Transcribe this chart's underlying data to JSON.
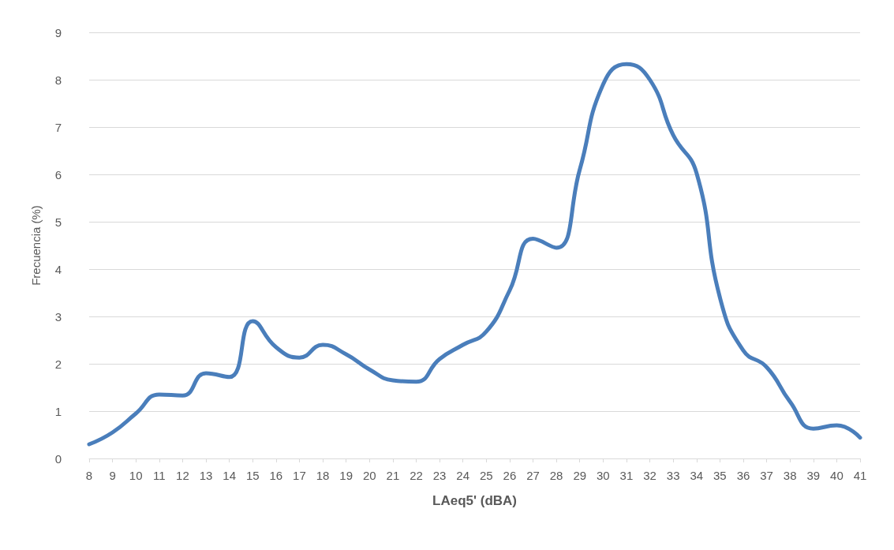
{
  "chart_data": {
    "type": "line",
    "xlabel": "LAeq5' (dBA)",
    "ylabel": "Frecuencia (%)",
    "categories": [
      "8",
      "9",
      "10",
      "11",
      "12",
      "13",
      "14",
      "15",
      "16",
      "17",
      "18",
      "19",
      "20",
      "21",
      "22",
      "23",
      "24",
      "25",
      "26",
      "27",
      "28",
      "29",
      "30",
      "31",
      "32",
      "33",
      "34",
      "35",
      "36",
      "37",
      "38",
      "39",
      "40",
      "41"
    ],
    "series": [
      {
        "color": "#4a7ebb",
        "values": [
          0.3,
          0.55,
          0.95,
          1.35,
          1.33,
          1.8,
          1.72,
          2.9,
          2.35,
          2.13,
          2.4,
          2.2,
          1.88,
          1.65,
          1.62,
          2.1,
          2.4,
          2.68,
          3.55,
          4.64,
          4.45,
          6.1,
          7.9,
          8.33,
          8.0,
          6.83,
          6.03,
          3.4,
          2.28,
          1.93,
          1.2,
          0.63,
          0.7,
          0.44
        ]
      }
    ],
    "ylim": [
      0,
      9
    ],
    "yticks": [
      0,
      1,
      2,
      3,
      4,
      5,
      6,
      7,
      8,
      9
    ],
    "grid": "y",
    "marker": "none",
    "line_style": "solid"
  }
}
